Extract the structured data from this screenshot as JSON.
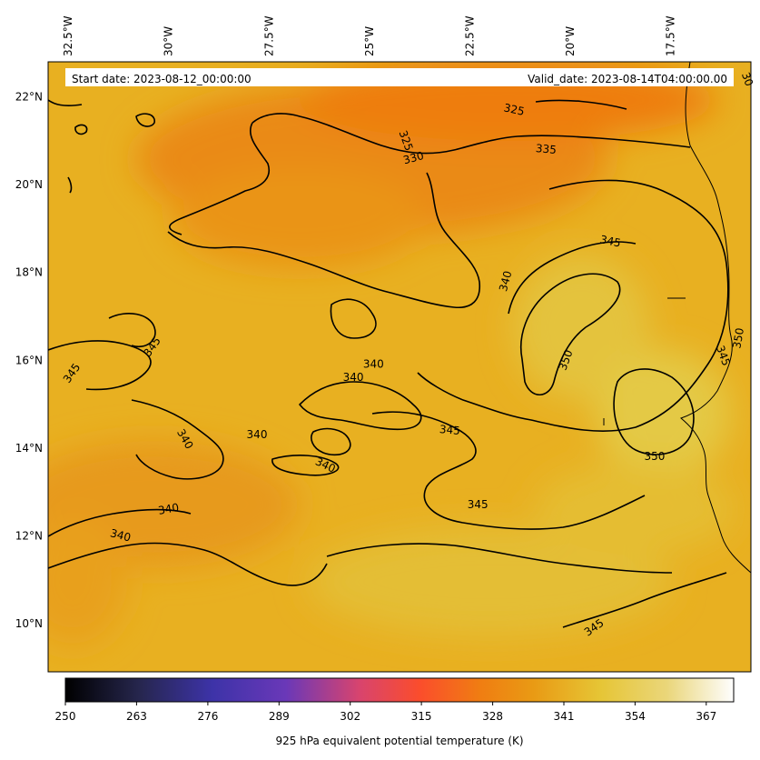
{
  "header": {
    "start_label": "Start date: 2023-08-12_00:00:00",
    "valid_label": "Valid_date: 2023-08-14T04:00:00.00"
  },
  "map": {
    "extent": {
      "lon_min": -33.0,
      "lon_max": -15.5,
      "lat_min": 8.9,
      "lat_max": 22.8
    },
    "lon_ticks": [
      {
        "value": -32.5,
        "label": "32.5°W"
      },
      {
        "value": -30.0,
        "label": "30°W"
      },
      {
        "value": -27.5,
        "label": "27.5°W"
      },
      {
        "value": -25.0,
        "label": "25°W"
      },
      {
        "value": -22.5,
        "label": "22.5°W"
      },
      {
        "value": -20.0,
        "label": "20°W"
      },
      {
        "value": -17.5,
        "label": "17.5°W"
      }
    ],
    "lat_ticks": [
      {
        "value": 22,
        "label": "22°N"
      },
      {
        "value": 20,
        "label": "20°N"
      },
      {
        "value": 18,
        "label": "18°N"
      },
      {
        "value": 16,
        "label": "16°N"
      },
      {
        "value": 14,
        "label": "14°N"
      },
      {
        "value": 12,
        "label": "12°N"
      },
      {
        "value": 10,
        "label": "10°N"
      }
    ],
    "contour_labels": [
      {
        "text": "325",
        "lon": -21.4,
        "lat": 21.7,
        "rot": 12
      },
      {
        "text": "325",
        "lon": -24.1,
        "lat": 21.0,
        "rot": 70
      },
      {
        "text": "330",
        "lon": -23.9,
        "lat": 20.6,
        "rot": -15
      },
      {
        "text": "335",
        "lon": -20.6,
        "lat": 20.8,
        "rot": 5
      },
      {
        "text": "345",
        "lon": -19.0,
        "lat": 18.7,
        "rot": 12
      },
      {
        "text": "340",
        "lon": -21.6,
        "lat": 17.8,
        "rot": -75
      },
      {
        "text": "350",
        "lon": -20.1,
        "lat": 16.0,
        "rot": -70
      },
      {
        "text": "350",
        "lon": -15.8,
        "lat": 16.5,
        "rot": -80
      },
      {
        "text": "345",
        "lon": -16.2,
        "lat": 16.1,
        "rot": 70
      },
      {
        "text": "345",
        "lon": -30.4,
        "lat": 16.3,
        "rot": -55
      },
      {
        "text": "345",
        "lon": -32.4,
        "lat": 15.7,
        "rot": -55
      },
      {
        "text": "340",
        "lon": -24.9,
        "lat": 15.9,
        "rot": 0
      },
      {
        "text": "340",
        "lon": -25.4,
        "lat": 15.6,
        "rot": 0
      },
      {
        "text": "340",
        "lon": -27.8,
        "lat": 14.3,
        "rot": 0
      },
      {
        "text": "340",
        "lon": -29.6,
        "lat": 14.2,
        "rot": 60
      },
      {
        "text": "345",
        "lon": -23.0,
        "lat": 14.4,
        "rot": 5
      },
      {
        "text": "340",
        "lon": -26.1,
        "lat": 13.6,
        "rot": 25
      },
      {
        "text": "350",
        "lon": -17.9,
        "lat": 13.8,
        "rot": 0
      },
      {
        "text": "345",
        "lon": -22.3,
        "lat": 12.7,
        "rot": 0
      },
      {
        "text": "340",
        "lon": -30.0,
        "lat": 12.6,
        "rot": -10
      },
      {
        "text": "340",
        "lon": -31.2,
        "lat": 12.0,
        "rot": 15
      },
      {
        "text": "345",
        "lon": -19.4,
        "lat": 9.9,
        "rot": -35
      },
      {
        "text": "30",
        "lon": -15.6,
        "lat": 22.4,
        "rot": 70
      }
    ]
  },
  "colorbar": {
    "min": 250,
    "max": 372,
    "ticks": [
      250,
      263,
      276,
      289,
      302,
      315,
      328,
      341,
      354,
      367
    ],
    "tick_labels": [
      "250",
      "263",
      "276",
      "289",
      "302",
      "315",
      "328",
      "341",
      "354",
      "367"
    ],
    "title": "925 hPa equivalent potential temperature (K)",
    "colormap": "CMRmap"
  }
}
